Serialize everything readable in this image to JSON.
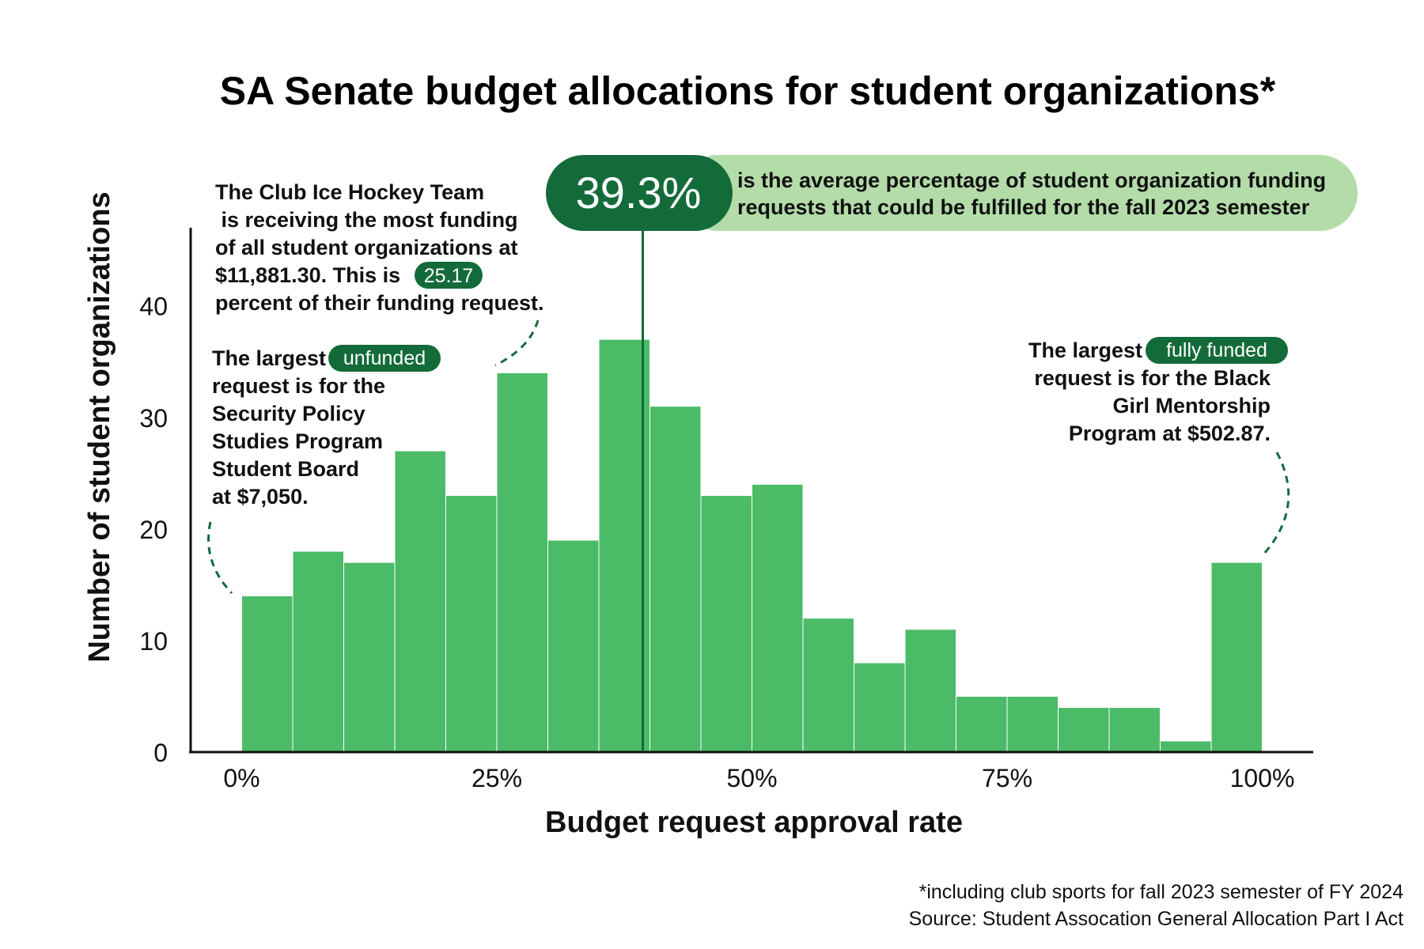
{
  "colors": {
    "bar": "#4cbb68",
    "bar_edge": "#ffffff",
    "dark_green": "#146b3a",
    "light_green": "#b3dca8",
    "axis": "#111111"
  },
  "chart_data": {
    "type": "bar",
    "title": "SA Senate budget allocations for student organizations*",
    "xlabel": "Budget request approval rate",
    "ylabel": "Number of student organizations",
    "bin_starts": [
      0,
      5,
      10,
      15,
      20,
      25,
      30,
      35,
      40,
      45,
      50,
      55,
      60,
      65,
      70,
      75,
      80,
      85,
      90,
      95
    ],
    "bin_width": 5,
    "values": [
      14,
      18,
      17,
      27,
      23,
      34,
      19,
      37,
      31,
      23,
      24,
      12,
      8,
      11,
      5,
      5,
      4,
      4,
      1,
      17
    ],
    "xlim": [
      -5,
      105
    ],
    "ylim": [
      0,
      47
    ],
    "x_ticks": [
      0,
      25,
      50,
      75,
      100
    ],
    "x_tick_labels": [
      "0%",
      "25%",
      "50%",
      "75%",
      "100%"
    ],
    "y_ticks": [
      0,
      10,
      20,
      30,
      40
    ],
    "y_tick_labels": [
      "0",
      "10",
      "20",
      "30",
      "40"
    ],
    "reference_line": {
      "x": 39.3,
      "label": "39.3%"
    }
  },
  "callouts": {
    "average": {
      "value": "39.3%",
      "lines": [
        "is the average percentage of student organization funding",
        "requests that could be fulfilled for the fall 2023 semester"
      ]
    },
    "hockey": {
      "lines": [
        "The Club Ice Hockey Team",
        " is receiving the most funding",
        "of all student organizations at"
      ],
      "line4_prefix": "$11,881.30. This is ",
      "badge": "25.17",
      "line5": "percent of their funding request."
    },
    "unfunded": {
      "prefix": "The largest ",
      "badge": "unfunded",
      "lines": [
        "request is for the",
        "Security Policy",
        "Studies Program",
        "Student Board",
        "at $7,050."
      ]
    },
    "fully_funded": {
      "prefix": "The largest ",
      "badge": "fully funded",
      "lines": [
        "request is for the Black",
        "Girl Mentorship",
        "Program at $502.87."
      ]
    }
  },
  "footnotes": [
    "*including club sports for fall 2023 semester of FY 2024",
    "Source: Student Assocation General Allocation Part I Act"
  ]
}
